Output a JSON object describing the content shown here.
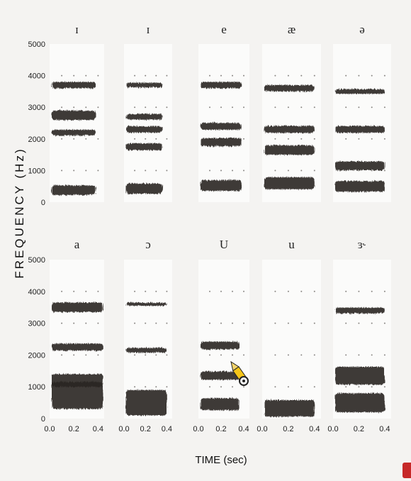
{
  "chart_data": {
    "type": "heatmap",
    "title": "",
    "ylabel": "FREQUENCY (Hz)",
    "xlabel": "TIME (sec)",
    "yticks": [
      "0",
      "1000",
      "2000",
      "3000",
      "4000",
      "5000"
    ],
    "xticks": [
      "0.0",
      "0.2",
      "0.4"
    ],
    "ylim": [
      0,
      5000
    ],
    "xlim": [
      0.0,
      0.45
    ],
    "grid": "dotted",
    "panels": [
      {
        "vowel": "ɪ",
        "duration": 0.38,
        "formants": [
          {
            "f": 380,
            "w": 300
          },
          {
            "f": 2200,
            "w": 180
          },
          {
            "f": 2750,
            "w": 300
          },
          {
            "f": 3700,
            "w": 200
          }
        ]
      },
      {
        "vowel": "ɪ",
        "duration": 0.36,
        "formants": [
          {
            "f": 430,
            "w": 320
          },
          {
            "f": 1750,
            "w": 220
          },
          {
            "f": 2300,
            "w": 200
          },
          {
            "f": 2700,
            "w": 180
          },
          {
            "f": 3700,
            "w": 150
          }
        ]
      },
      {
        "vowel": "e",
        "duration": 0.38,
        "formants": [
          {
            "f": 530,
            "w": 340
          },
          {
            "f": 1900,
            "w": 260
          },
          {
            "f": 2400,
            "w": 220
          },
          {
            "f": 3700,
            "w": 200
          }
        ]
      },
      {
        "vowel": "æ",
        "duration": 0.4,
        "formants": [
          {
            "f": 600,
            "w": 380
          },
          {
            "f": 1650,
            "w": 300
          },
          {
            "f": 2300,
            "w": 220
          },
          {
            "f": 3600,
            "w": 200
          }
        ]
      },
      {
        "vowel": "ə",
        "duration": 0.4,
        "formants": [
          {
            "f": 500,
            "w": 340
          },
          {
            "f": 1150,
            "w": 280
          },
          {
            "f": 2300,
            "w": 220
          },
          {
            "f": 3500,
            "w": 150
          }
        ]
      },
      {
        "vowel": "a",
        "duration": 0.44,
        "formants": [
          {
            "f": 730,
            "w": 850
          },
          {
            "f": 1200,
            "w": 400
          },
          {
            "f": 2250,
            "w": 220
          },
          {
            "f": 3500,
            "w": 300
          }
        ]
      },
      {
        "vowel": "ɔ",
        "duration": 0.4,
        "formants": [
          {
            "f": 500,
            "w": 800
          },
          {
            "f": 2150,
            "w": 150
          },
          {
            "f": 3600,
            "w": 100
          }
        ]
      },
      {
        "vowel": "U",
        "duration": 0.36,
        "formants": [
          {
            "f": 450,
            "w": 380
          },
          {
            "f": 1350,
            "w": 260
          },
          {
            "f": 2300,
            "w": 240
          }
        ]
      },
      {
        "vowel": "u",
        "duration": 0.4,
        "formants": [
          {
            "f": 320,
            "w": 520
          }
        ]
      },
      {
        "vowel": "ɜ˞",
        "duration": 0.4,
        "formants": [
          {
            "f": 500,
            "w": 600
          },
          {
            "f": 1350,
            "w": 560
          },
          {
            "f": 3400,
            "w": 180
          }
        ]
      }
    ]
  },
  "colors": {
    "ink": "#2a2622",
    "panel": "#fbfbfa",
    "background": "#f4f3f1",
    "accent": "#c62828"
  },
  "icons": {
    "cursor": "pencil-cursor-icon"
  }
}
